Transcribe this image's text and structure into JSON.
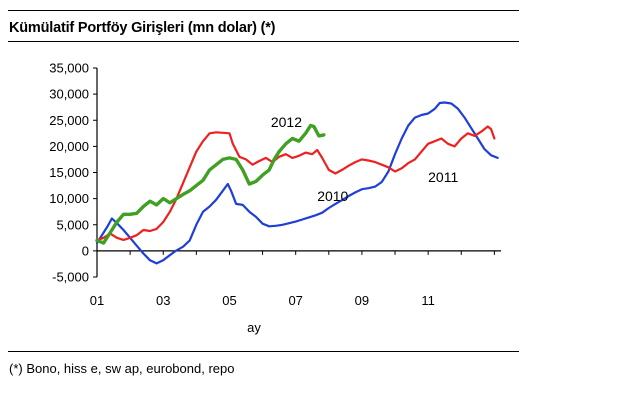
{
  "title": "Kümülatif Portföy Girişleri (mn dolar) (*)",
  "footnote": "(*) Bono, hiss e, sw ap, eurobond, repo",
  "chart_data": {
    "type": "line",
    "title": "Kümülatif Portföy Girişleri (mn dolar) (*)",
    "xlabel": "ay",
    "ylabel": "",
    "xlim": [
      1,
      13.2
    ],
    "ylim": [
      -5000,
      35000
    ],
    "grid": false,
    "legend": "inline labels",
    "x_ticks": [
      "01",
      "03",
      "05",
      "07",
      "09",
      "11"
    ],
    "x_tick_values": [
      1,
      3,
      5,
      7,
      9,
      11
    ],
    "y_ticks": [
      "-5,000",
      "0",
      "5,000",
      "10,000",
      "15,000",
      "20,000",
      "25,000",
      "30,000",
      "35,000"
    ],
    "y_tick_values": [
      -5000,
      0,
      5000,
      10000,
      15000,
      20000,
      25000,
      30000,
      35000
    ],
    "series": [
      {
        "name": "2010",
        "color": "#1f3fd8",
        "label_at": [
          7.65,
          9500
        ],
        "points": [
          [
            1.0,
            1500
          ],
          [
            1.3,
            4500
          ],
          [
            1.45,
            6200
          ],
          [
            1.6,
            5300
          ],
          [
            1.8,
            4000
          ],
          [
            2.0,
            2500
          ],
          [
            2.2,
            1000
          ],
          [
            2.4,
            -500
          ],
          [
            2.6,
            -1800
          ],
          [
            2.8,
            -2400
          ],
          [
            3.0,
            -1800
          ],
          [
            3.2,
            -800
          ],
          [
            3.4,
            100
          ],
          [
            3.6,
            800
          ],
          [
            3.8,
            2000
          ],
          [
            4.0,
            5000
          ],
          [
            4.2,
            7500
          ],
          [
            4.4,
            8500
          ],
          [
            4.6,
            9800
          ],
          [
            4.8,
            11500
          ],
          [
            4.95,
            12800
          ],
          [
            5.05,
            11500
          ],
          [
            5.2,
            9000
          ],
          [
            5.4,
            8800
          ],
          [
            5.6,
            7500
          ],
          [
            5.8,
            6500
          ],
          [
            6.0,
            5200
          ],
          [
            6.2,
            4700
          ],
          [
            6.4,
            4800
          ],
          [
            6.6,
            5000
          ],
          [
            6.8,
            5300
          ],
          [
            7.0,
            5600
          ],
          [
            7.2,
            6000
          ],
          [
            7.4,
            6400
          ],
          [
            7.6,
            6800
          ],
          [
            7.8,
            7300
          ],
          [
            8.0,
            8200
          ],
          [
            8.2,
            9000
          ],
          [
            8.4,
            9700
          ],
          [
            8.6,
            10500
          ],
          [
            8.8,
            11200
          ],
          [
            9.0,
            11800
          ],
          [
            9.2,
            12000
          ],
          [
            9.4,
            12300
          ],
          [
            9.6,
            13200
          ],
          [
            9.8,
            15200
          ],
          [
            10.0,
            18500
          ],
          [
            10.2,
            21500
          ],
          [
            10.4,
            24000
          ],
          [
            10.6,
            25500
          ],
          [
            10.8,
            26000
          ],
          [
            11.0,
            26300
          ],
          [
            11.2,
            27200
          ],
          [
            11.35,
            28300
          ],
          [
            11.5,
            28400
          ],
          [
            11.7,
            28200
          ],
          [
            11.9,
            27200
          ],
          [
            12.1,
            25500
          ],
          [
            12.3,
            23500
          ],
          [
            12.5,
            21500
          ],
          [
            12.7,
            19500
          ],
          [
            12.9,
            18300
          ],
          [
            13.1,
            17800
          ]
        ]
      },
      {
        "name": "2011",
        "color": "#ee2020",
        "label_at": [
          11.0,
          13200
        ],
        "points": [
          [
            1.0,
            2000
          ],
          [
            1.2,
            2500
          ],
          [
            1.4,
            3300
          ],
          [
            1.6,
            2500
          ],
          [
            1.8,
            2100
          ],
          [
            2.0,
            2500
          ],
          [
            2.2,
            3000
          ],
          [
            2.4,
            4000
          ],
          [
            2.6,
            3800
          ],
          [
            2.8,
            4200
          ],
          [
            3.0,
            5500
          ],
          [
            3.2,
            7500
          ],
          [
            3.4,
            10000
          ],
          [
            3.6,
            13000
          ],
          [
            3.8,
            16000
          ],
          [
            4.0,
            19000
          ],
          [
            4.2,
            21000
          ],
          [
            4.4,
            22500
          ],
          [
            4.6,
            22700
          ],
          [
            4.8,
            22600
          ],
          [
            5.0,
            22500
          ],
          [
            5.1,
            20500
          ],
          [
            5.3,
            18000
          ],
          [
            5.5,
            17500
          ],
          [
            5.7,
            16500
          ],
          [
            5.9,
            17200
          ],
          [
            6.1,
            17800
          ],
          [
            6.3,
            17000
          ],
          [
            6.5,
            18000
          ],
          [
            6.7,
            18500
          ],
          [
            6.9,
            17800
          ],
          [
            7.1,
            18200
          ],
          [
            7.3,
            18800
          ],
          [
            7.5,
            18500
          ],
          [
            7.65,
            19300
          ],
          [
            7.8,
            17800
          ],
          [
            8.0,
            15500
          ],
          [
            8.2,
            14800
          ],
          [
            8.4,
            15500
          ],
          [
            8.6,
            16300
          ],
          [
            8.8,
            17000
          ],
          [
            9.0,
            17500
          ],
          [
            9.2,
            17300
          ],
          [
            9.4,
            17000
          ],
          [
            9.6,
            16500
          ],
          [
            9.8,
            16000
          ],
          [
            10.0,
            15200
          ],
          [
            10.2,
            15800
          ],
          [
            10.4,
            16800
          ],
          [
            10.6,
            17500
          ],
          [
            10.8,
            19000
          ],
          [
            11.0,
            20500
          ],
          [
            11.2,
            21000
          ],
          [
            11.4,
            21500
          ],
          [
            11.6,
            20500
          ],
          [
            11.8,
            20000
          ],
          [
            12.0,
            21500
          ],
          [
            12.2,
            22500
          ],
          [
            12.4,
            22000
          ],
          [
            12.6,
            22800
          ],
          [
            12.8,
            23800
          ],
          [
            12.9,
            23300
          ],
          [
            13.0,
            21500
          ]
        ]
      },
      {
        "name": "2012",
        "color": "#3fa022",
        "label_at": [
          6.25,
          23700
        ],
        "points": [
          [
            1.0,
            2000
          ],
          [
            1.2,
            1500
          ],
          [
            1.4,
            3500
          ],
          [
            1.6,
            5500
          ],
          [
            1.8,
            7000
          ],
          [
            2.0,
            7000
          ],
          [
            2.2,
            7200
          ],
          [
            2.4,
            8500
          ],
          [
            2.6,
            9500
          ],
          [
            2.8,
            8800
          ],
          [
            3.0,
            10000
          ],
          [
            3.2,
            9200
          ],
          [
            3.4,
            10000
          ],
          [
            3.6,
            10800
          ],
          [
            3.8,
            11500
          ],
          [
            4.0,
            12500
          ],
          [
            4.2,
            13500
          ],
          [
            4.4,
            15500
          ],
          [
            4.6,
            16500
          ],
          [
            4.8,
            17500
          ],
          [
            5.0,
            17800
          ],
          [
            5.2,
            17500
          ],
          [
            5.4,
            15500
          ],
          [
            5.6,
            12800
          ],
          [
            5.8,
            13300
          ],
          [
            6.0,
            14500
          ],
          [
            6.2,
            15500
          ],
          [
            6.35,
            17500
          ],
          [
            6.5,
            19000
          ],
          [
            6.7,
            20500
          ],
          [
            6.9,
            21500
          ],
          [
            7.1,
            21000
          ],
          [
            7.3,
            22500
          ],
          [
            7.45,
            24000
          ],
          [
            7.55,
            23800
          ],
          [
            7.7,
            22000
          ],
          [
            7.85,
            22200
          ]
        ]
      }
    ]
  }
}
